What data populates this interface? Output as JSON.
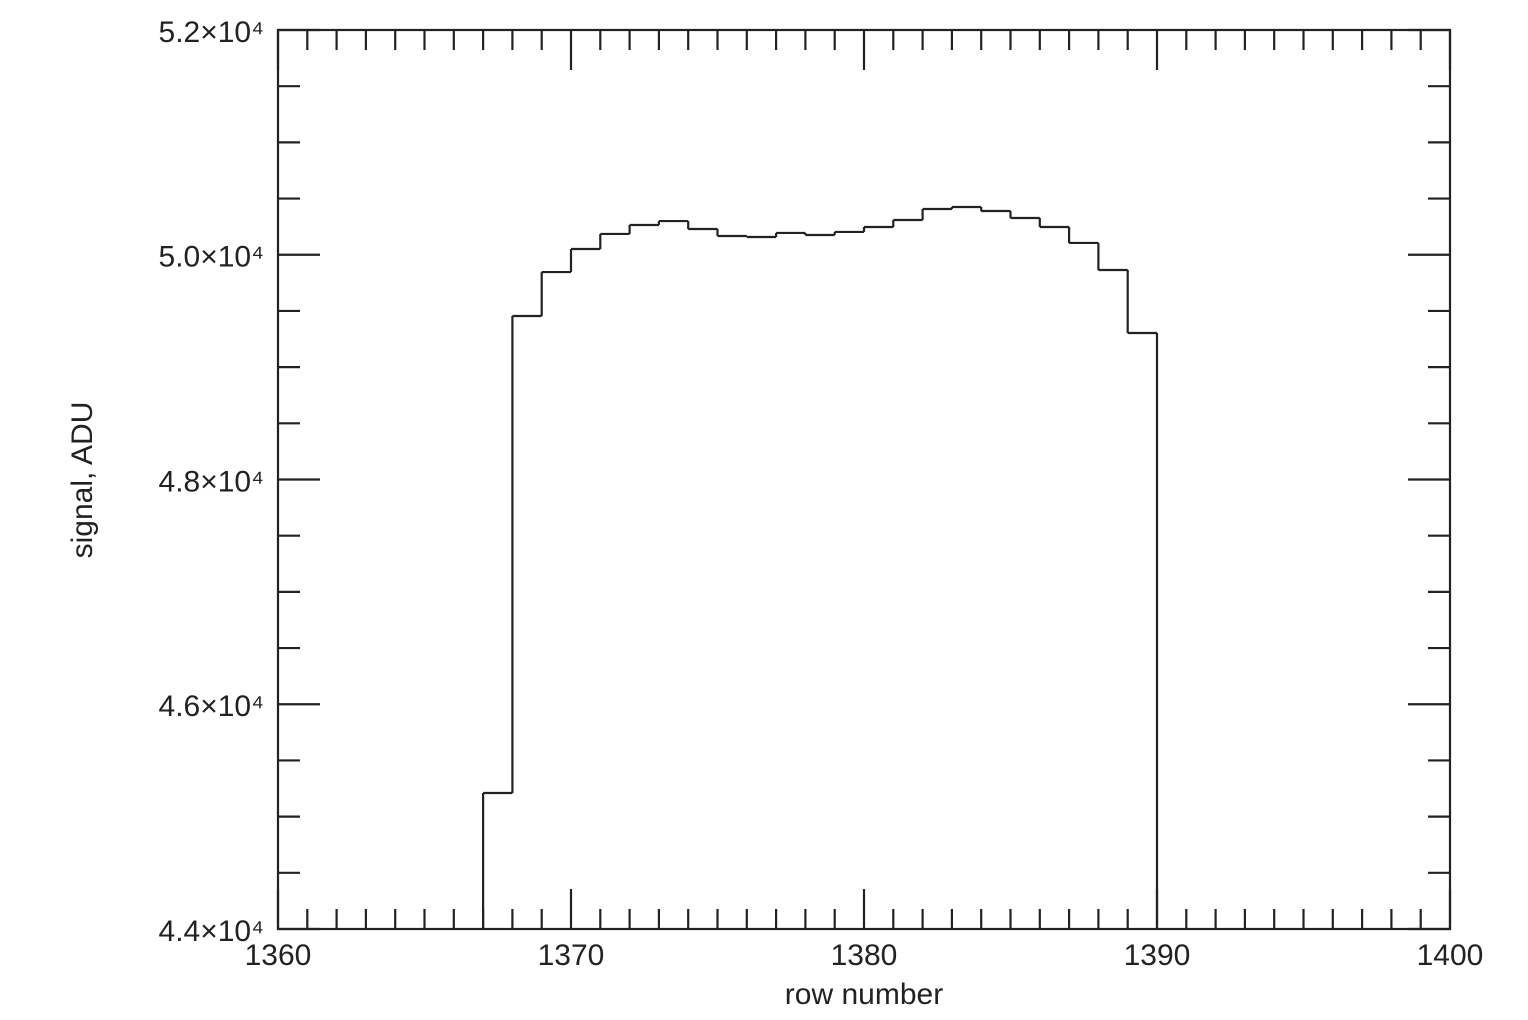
{
  "chart_data": {
    "type": "histogram",
    "x_label": "row number",
    "y_label": "signal, ADU",
    "bins": [
      1367,
      1368,
      1369,
      1370,
      1371,
      1372,
      1373,
      1374,
      1375,
      1376,
      1377,
      1378,
      1379,
      1380,
      1381,
      1382,
      1383,
      1384,
      1385,
      1386,
      1387,
      1388,
      1389,
      1390
    ],
    "values": [
      45210,
      49455,
      49846,
      50051,
      50185,
      50265,
      50300,
      50229,
      50167,
      50158,
      50194,
      50176,
      50203,
      50247,
      50309,
      50407,
      50425,
      50389,
      50327,
      50247,
      50105,
      49864,
      49304
    ],
    "color": "#222222",
    "xlim": [
      1360,
      1400
    ],
    "ylim": [
      44000,
      52000
    ],
    "xticks": [
      1360,
      1370,
      1380,
      1390,
      1400
    ],
    "yticks": [
      {
        "value": 44000,
        "label": "4.4×10⁴"
      },
      {
        "value": 46000,
        "label": "4.6×10⁴"
      },
      {
        "value": 48000,
        "label": "4.8×10⁴"
      },
      {
        "value": 50000,
        "label": "5.0×10⁴"
      },
      {
        "value": 52000,
        "label": "5.2×10⁴"
      }
    ],
    "xminorticks": [
      1361,
      1362,
      1363,
      1364,
      1365,
      1366,
      1367,
      1368,
      1369,
      1371,
      1372,
      1373,
      1374,
      1375,
      1376,
      1377,
      1378,
      1379,
      1381,
      1382,
      1383,
      1384,
      1385,
      1386,
      1387,
      1388,
      1389,
      1391,
      1392,
      1393,
      1394,
      1395,
      1396,
      1397,
      1398,
      1399
    ],
    "yminorticks": [
      44500,
      45000,
      45500,
      46500,
      47000,
      47500,
      48500,
      49000,
      49500,
      50500,
      51000,
      51500
    ],
    "grid": false
  }
}
